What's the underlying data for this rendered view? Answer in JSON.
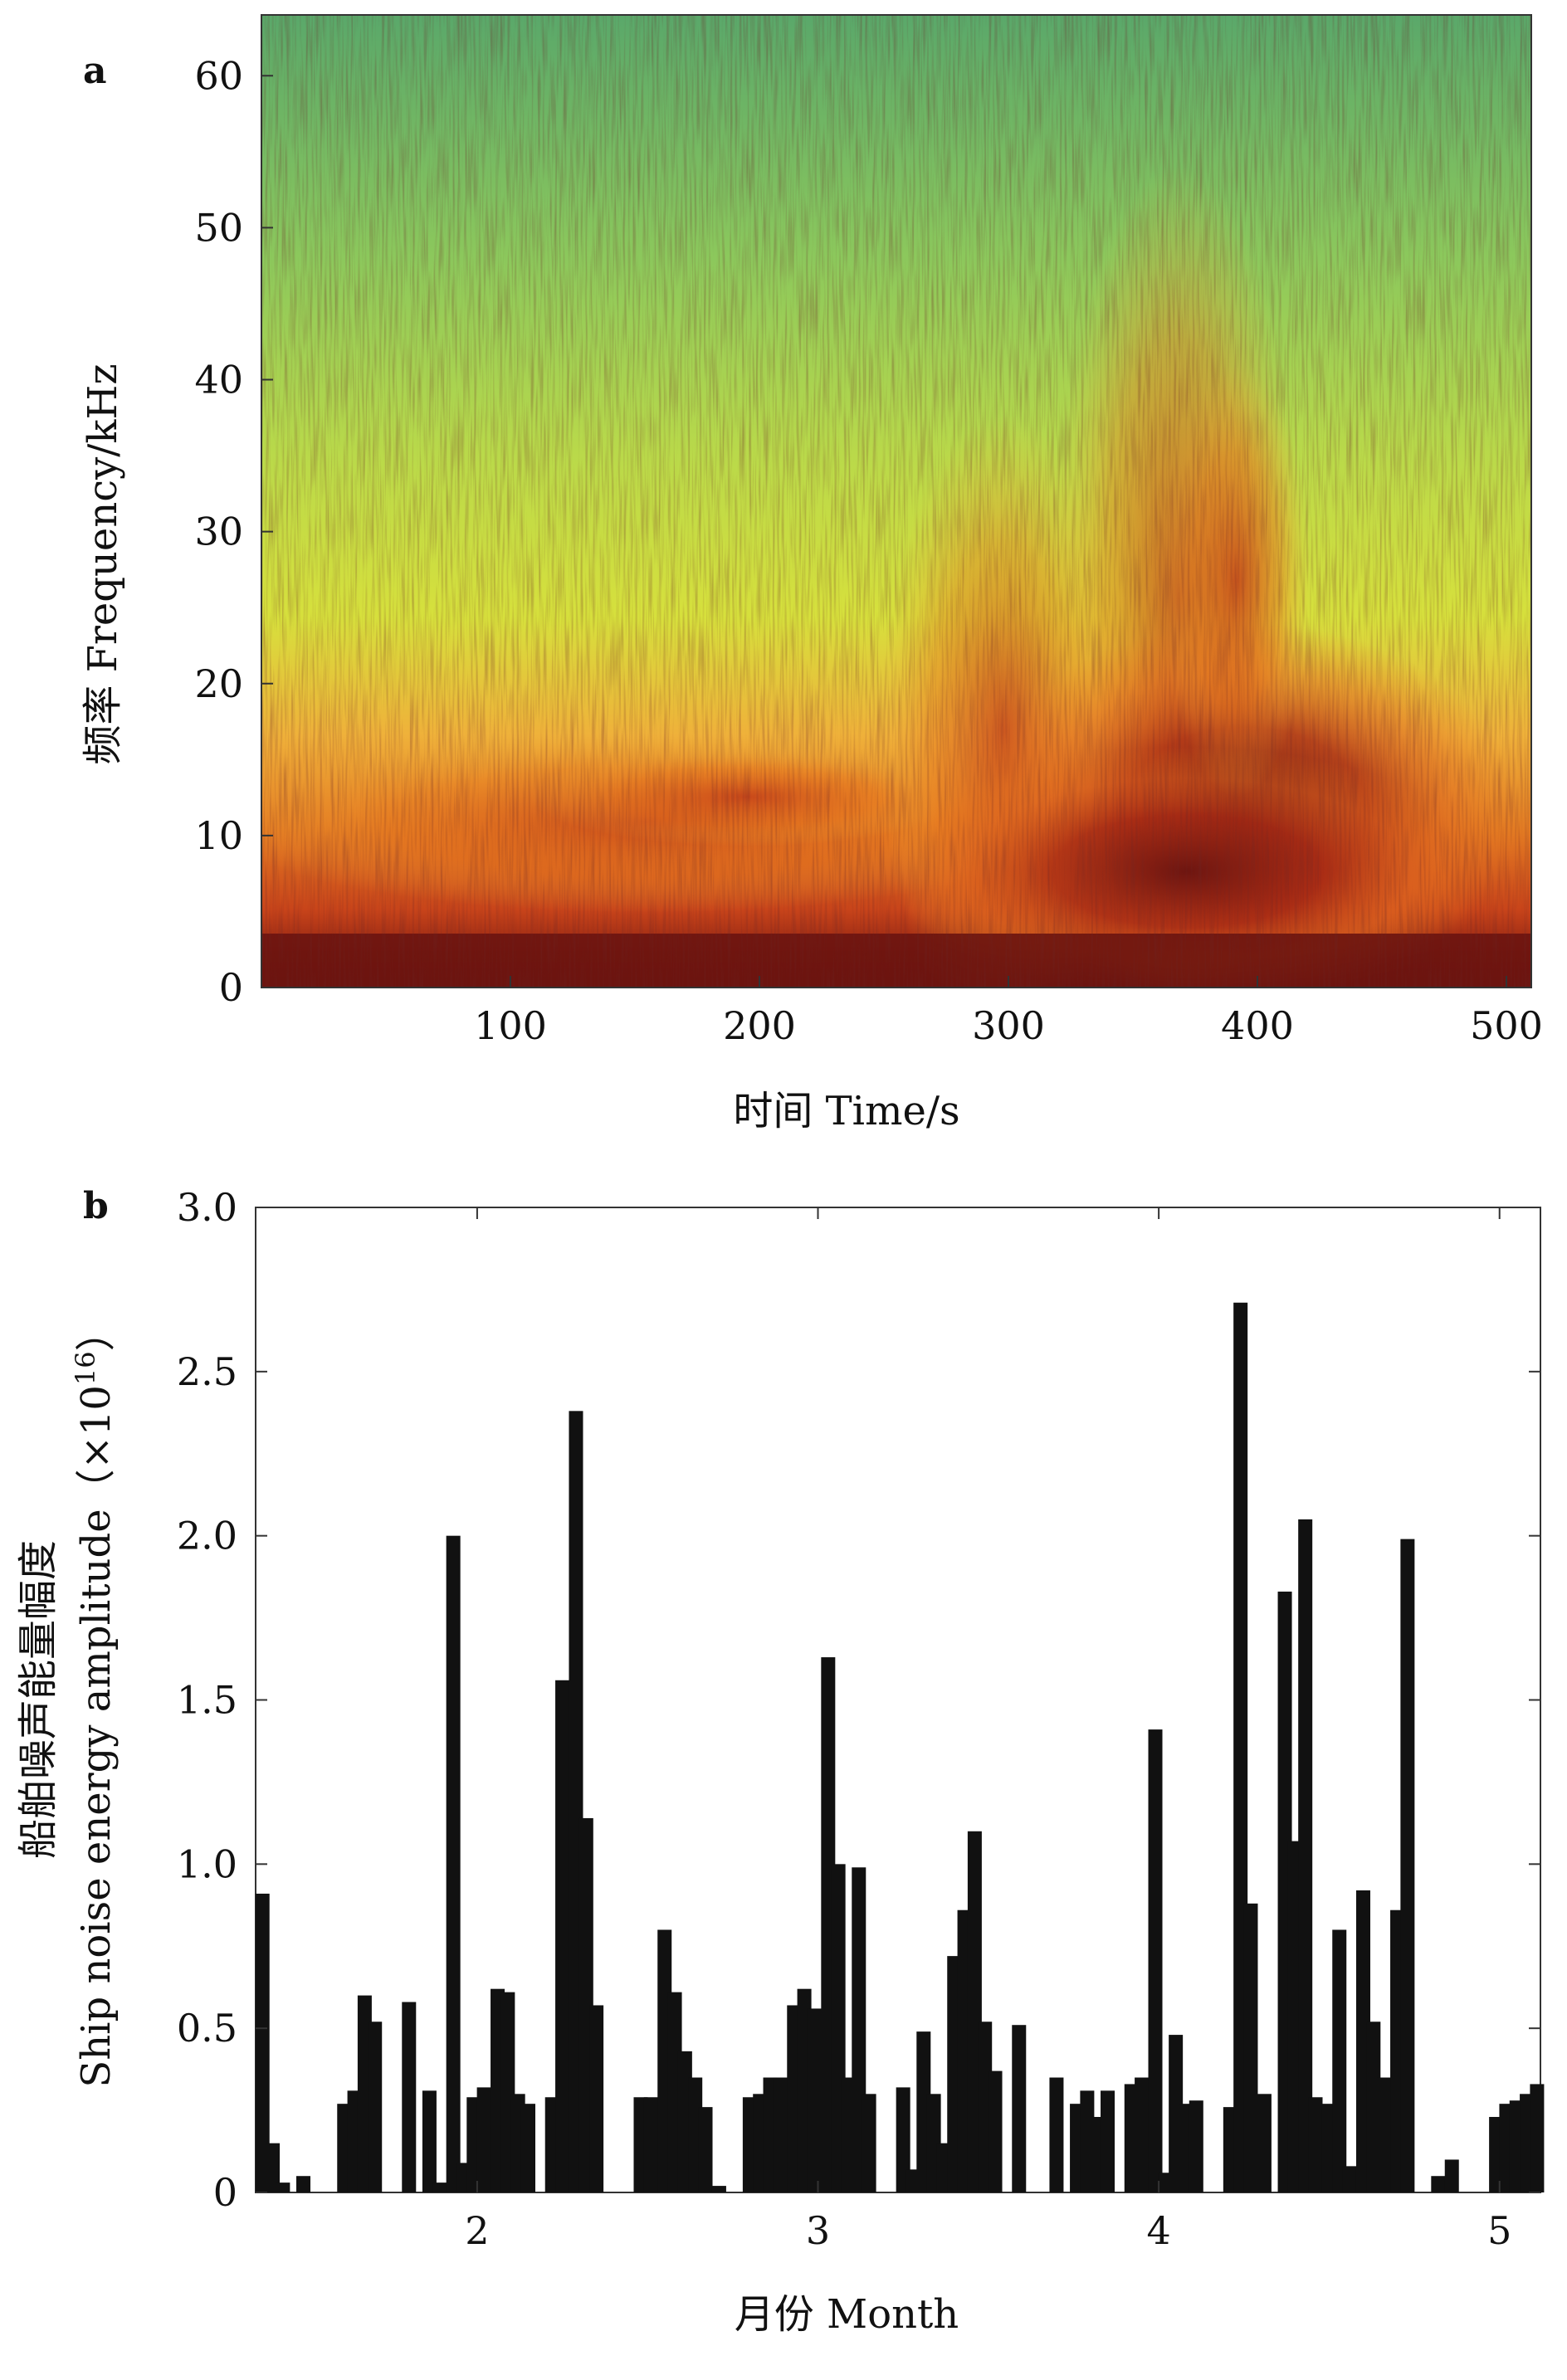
{
  "chart_data": [
    {
      "panel": "a",
      "type": "heatmap",
      "xlabel": "时间 Time/s",
      "ylabel": "频率 Frequency/kHz",
      "xlim": [
        0,
        510
      ],
      "ylim": [
        0,
        64
      ],
      "xticks": [
        100,
        200,
        300,
        400,
        500
      ],
      "yticks": [
        0,
        10,
        20,
        30,
        40,
        50,
        60
      ],
      "colors": {
        "low": "#5aa86a",
        "mid": "#cde03a",
        "high": "#e8781e",
        "max": "#6b1410"
      }
    },
    {
      "panel": "b",
      "type": "bar",
      "xlabel": "月份 Month",
      "ylabel_cn": "船舶噪声能量幅度",
      "ylabel_en": "Ship noise energy amplitude（×10",
      "ylabel_exp": "16",
      "ylabel_end": "）",
      "xlim": [
        1.35,
        5.12
      ],
      "ylim": [
        0,
        3.0
      ],
      "xticks": [
        2,
        3,
        4,
        5
      ],
      "yticks": [
        0,
        0.5,
        1.0,
        1.5,
        2.0,
        2.5,
        3.0
      ],
      "ytick_labels": [
        "0",
        "0.5",
        "1.0",
        "1.5",
        "2.0",
        "2.5",
        "3.0"
      ],
      "bar_color": "#111111",
      "bars": [
        {
          "x": 1.37,
          "y": 0.91
        },
        {
          "x": 1.4,
          "y": 0.15
        },
        {
          "x": 1.43,
          "y": 0.03
        },
        {
          "x": 1.49,
          "y": 0.05
        },
        {
          "x": 1.61,
          "y": 0.27
        },
        {
          "x": 1.64,
          "y": 0.31
        },
        {
          "x": 1.67,
          "y": 0.6
        },
        {
          "x": 1.7,
          "y": 0.52
        },
        {
          "x": 1.8,
          "y": 0.58
        },
        {
          "x": 1.86,
          "y": 0.31
        },
        {
          "x": 1.89,
          "y": 0.03
        },
        {
          "x": 1.93,
          "y": 2.0
        },
        {
          "x": 1.96,
          "y": 0.09
        },
        {
          "x": 1.99,
          "y": 0.29
        },
        {
          "x": 2.02,
          "y": 0.32
        },
        {
          "x": 2.06,
          "y": 0.62
        },
        {
          "x": 2.09,
          "y": 0.61
        },
        {
          "x": 2.12,
          "y": 0.3
        },
        {
          "x": 2.15,
          "y": 0.27
        },
        {
          "x": 2.22,
          "y": 0.29
        },
        {
          "x": 2.25,
          "y": 1.56
        },
        {
          "x": 2.29,
          "y": 2.38
        },
        {
          "x": 2.32,
          "y": 1.14
        },
        {
          "x": 2.35,
          "y": 0.57
        },
        {
          "x": 2.48,
          "y": 0.29
        },
        {
          "x": 2.51,
          "y": 0.29
        },
        {
          "x": 2.55,
          "y": 0.8
        },
        {
          "x": 2.58,
          "y": 0.61
        },
        {
          "x": 2.61,
          "y": 0.43
        },
        {
          "x": 2.64,
          "y": 0.35
        },
        {
          "x": 2.67,
          "y": 0.26
        },
        {
          "x": 2.71,
          "y": 0.02
        },
        {
          "x": 2.8,
          "y": 0.29
        },
        {
          "x": 2.83,
          "y": 0.3
        },
        {
          "x": 2.86,
          "y": 0.35
        },
        {
          "x": 2.89,
          "y": 0.35
        },
        {
          "x": 2.93,
          "y": 0.57
        },
        {
          "x": 2.96,
          "y": 0.62
        },
        {
          "x": 2.99,
          "y": 0.56
        },
        {
          "x": 3.03,
          "y": 1.63
        },
        {
          "x": 3.06,
          "y": 1.0
        },
        {
          "x": 3.09,
          "y": 0.35
        },
        {
          "x": 3.12,
          "y": 0.99
        },
        {
          "x": 3.15,
          "y": 0.3
        },
        {
          "x": 3.25,
          "y": 0.32
        },
        {
          "x": 3.28,
          "y": 0.07
        },
        {
          "x": 3.31,
          "y": 0.49
        },
        {
          "x": 3.34,
          "y": 0.3
        },
        {
          "x": 3.37,
          "y": 0.15
        },
        {
          "x": 3.4,
          "y": 0.72
        },
        {
          "x": 3.43,
          "y": 0.86
        },
        {
          "x": 3.46,
          "y": 1.1
        },
        {
          "x": 3.49,
          "y": 0.52
        },
        {
          "x": 3.52,
          "y": 0.37
        },
        {
          "x": 3.59,
          "y": 0.51
        },
        {
          "x": 3.7,
          "y": 0.35
        },
        {
          "x": 3.76,
          "y": 0.27
        },
        {
          "x": 3.79,
          "y": 0.31
        },
        {
          "x": 3.82,
          "y": 0.23
        },
        {
          "x": 3.85,
          "y": 0.31
        },
        {
          "x": 3.92,
          "y": 0.33
        },
        {
          "x": 3.95,
          "y": 0.35
        },
        {
          "x": 3.99,
          "y": 1.41
        },
        {
          "x": 4.02,
          "y": 0.06
        },
        {
          "x": 4.05,
          "y": 0.48
        },
        {
          "x": 4.08,
          "y": 0.27
        },
        {
          "x": 4.11,
          "y": 0.28
        },
        {
          "x": 4.21,
          "y": 0.26
        },
        {
          "x": 4.24,
          "y": 2.71
        },
        {
          "x": 4.27,
          "y": 0.88
        },
        {
          "x": 4.31,
          "y": 0.3
        },
        {
          "x": 4.37,
          "y": 1.83
        },
        {
          "x": 4.4,
          "y": 1.07
        },
        {
          "x": 4.43,
          "y": 2.05
        },
        {
          "x": 4.46,
          "y": 0.29
        },
        {
          "x": 4.5,
          "y": 0.27
        },
        {
          "x": 4.53,
          "y": 0.8
        },
        {
          "x": 4.56,
          "y": 0.08
        },
        {
          "x": 4.6,
          "y": 0.92
        },
        {
          "x": 4.63,
          "y": 0.52
        },
        {
          "x": 4.66,
          "y": 0.35
        },
        {
          "x": 4.7,
          "y": 0.86
        },
        {
          "x": 4.73,
          "y": 1.99
        },
        {
          "x": 4.82,
          "y": 0.05
        },
        {
          "x": 4.86,
          "y": 0.1
        },
        {
          "x": 4.99,
          "y": 0.23
        },
        {
          "x": 5.02,
          "y": 0.27
        },
        {
          "x": 5.05,
          "y": 0.28
        },
        {
          "x": 5.08,
          "y": 0.3
        },
        {
          "x": 5.11,
          "y": 0.33
        }
      ]
    }
  ]
}
